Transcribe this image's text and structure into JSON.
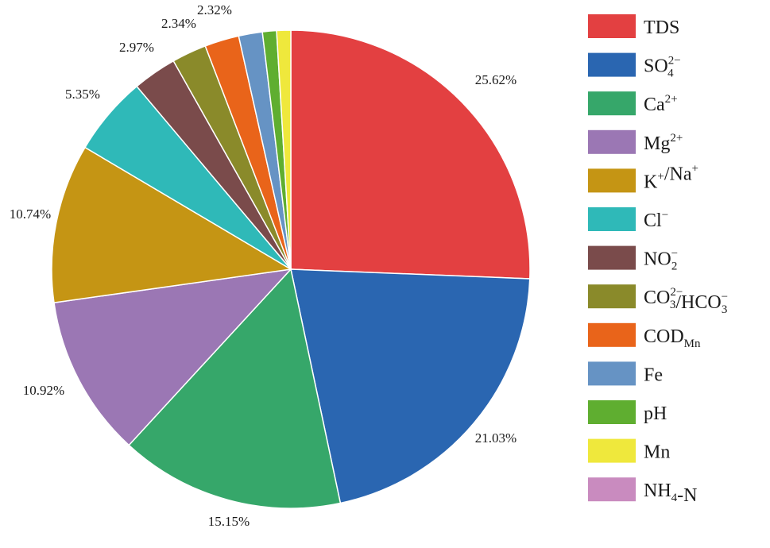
{
  "chart_data": {
    "type": "pie",
    "title": "",
    "start_angle_deg": 0,
    "direction": "clockwise",
    "slices": [
      {
        "label": "TDS",
        "legend_main": "TDS",
        "legend_sup": "",
        "legend_sub": "",
        "legend_tail": "",
        "value": 25.62,
        "value_label": "25.62%",
        "color": "#e34041"
      },
      {
        "label": "SO4 2−",
        "legend_main": "SO",
        "legend_sup": "2−",
        "legend_sub": "4",
        "legend_tail": "",
        "value": 21.03,
        "value_label": "21.03%",
        "color": "#2a66b1"
      },
      {
        "label": "Ca 2+",
        "legend_main": "Ca",
        "legend_sup": "2+",
        "legend_sub": "",
        "legend_tail": "",
        "value": 15.15,
        "value_label": "15.15%",
        "color": "#36a76a"
      },
      {
        "label": "Mg 2+",
        "legend_main": "Mg",
        "legend_sup": "2+",
        "legend_sub": "",
        "legend_tail": "",
        "value": 10.92,
        "value_label": "10.92%",
        "color": "#9b77b4"
      },
      {
        "label": "K+/Na+",
        "legend_main": "K",
        "legend_sup": "+",
        "legend_sub": "",
        "legend_tail": "/Na",
        "legend_tail_sup": "+",
        "value": 10.74,
        "value_label": "10.74%",
        "color": "#c59514"
      },
      {
        "label": "Cl−",
        "legend_main": "Cl",
        "legend_sup": "−",
        "legend_sub": "",
        "legend_tail": "",
        "value": 5.35,
        "value_label": "5.35%",
        "color": "#2fb9b8"
      },
      {
        "label": "NO2 −",
        "legend_main": "NO",
        "legend_sup": "−",
        "legend_sub": "2",
        "legend_tail": "",
        "value": 2.97,
        "value_label": "2.97%",
        "color": "#7a4b4b"
      },
      {
        "label": "CO3 2−/HCO3 −",
        "legend_main": "CO",
        "legend_sup": "2−",
        "legend_sub": "3",
        "legend_tail": "/HCO",
        "legend_tail_sup": "−",
        "legend_tail_sub": "3",
        "value": 2.34,
        "value_label": "2.34%",
        "color": "#8a8a2a"
      },
      {
        "label": "CODMn",
        "legend_main": "COD",
        "legend_sup": "",
        "legend_sub": "Mn",
        "legend_tail": "",
        "value": 2.32,
        "value_label": "2.32%",
        "color": "#e9641a"
      },
      {
        "label": "Fe",
        "legend_main": "Fe",
        "legend_sup": "",
        "legend_sub": "",
        "legend_tail": "",
        "value": 1.6,
        "value_label": "",
        "color": "#6693c4"
      },
      {
        "label": "pH",
        "legend_main": "pH",
        "legend_sup": "",
        "legend_sub": "",
        "legend_tail": "",
        "value": 0.95,
        "value_label": "",
        "color": "#5fae30"
      },
      {
        "label": "Mn",
        "legend_main": "Mn",
        "legend_sup": "",
        "legend_sub": "",
        "legend_tail": "",
        "value": 0.95,
        "value_label": "",
        "color": "#efe83c"
      },
      {
        "label": "NH4-N",
        "legend_main": "NH",
        "legend_sup": "",
        "legend_sub": "4",
        "legend_tail": "-N",
        "value": 0.0,
        "value_label": "",
        "color": "#c98bbf"
      }
    ],
    "legend_position": "right",
    "grid": false
  }
}
